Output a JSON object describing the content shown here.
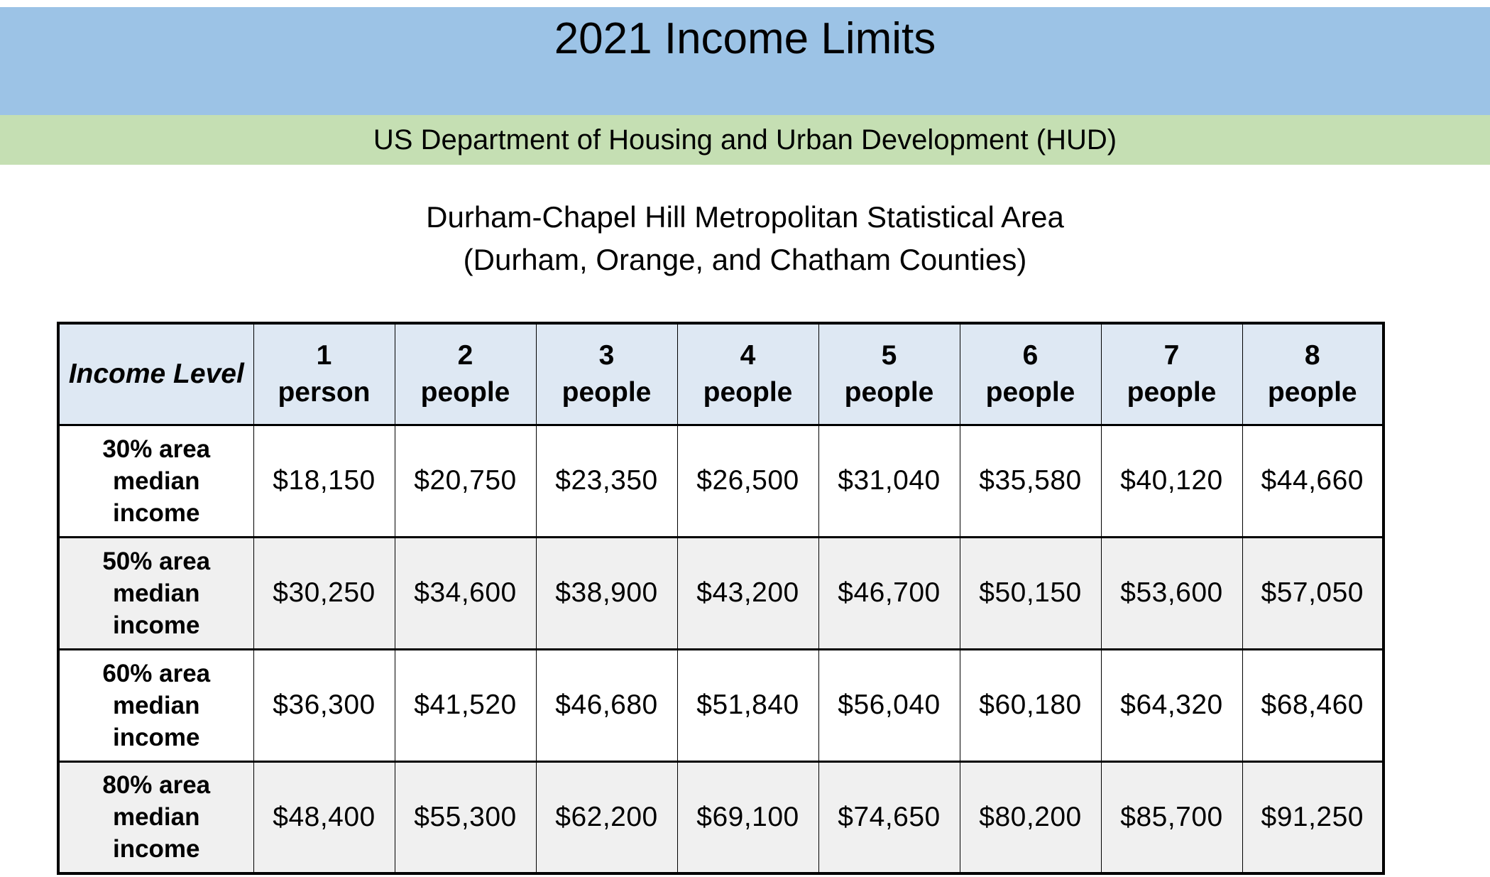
{
  "banner": {
    "title": "2021 Income Limits",
    "org": "US Department of Housing and Urban Development (HUD)"
  },
  "area_title": {
    "line1": "Durham-Chapel Hill Metropolitan Statistical Area",
    "line2": "(Durham, Orange, and Chatham Counties)"
  },
  "colors": {
    "title_band": "#9CC3E6",
    "org_band": "#C5DFB3",
    "table_header_bg": "#DEE8F3",
    "stripe_row_bg": "#F0F0F0",
    "border": "#000000",
    "text": "#000000",
    "page_bg": "#FFFFFF"
  },
  "chart_data": {
    "type": "table",
    "corner_header": "Income Level",
    "columns": [
      {
        "count": "1",
        "unit": "person"
      },
      {
        "count": "2",
        "unit": "people"
      },
      {
        "count": "3",
        "unit": "people"
      },
      {
        "count": "4",
        "unit": "people"
      },
      {
        "count": "5",
        "unit": "people"
      },
      {
        "count": "6",
        "unit": "people"
      },
      {
        "count": "7",
        "unit": "people"
      },
      {
        "count": "8",
        "unit": "people"
      }
    ],
    "rows": [
      {
        "label_lines": [
          "30% area",
          "median",
          "income"
        ],
        "values": [
          "$18,150",
          "$20,750",
          "$23,350",
          "$26,500",
          "$31,040",
          "$35,580",
          "$40,120",
          "$44,660"
        ]
      },
      {
        "label_lines": [
          "50% area",
          "median",
          "income"
        ],
        "values": [
          "$30,250",
          "$34,600",
          "$38,900",
          "$43,200",
          "$46,700",
          "$50,150",
          "$53,600",
          "$57,050"
        ]
      },
      {
        "label_lines": [
          "60% area",
          "median",
          "income"
        ],
        "values": [
          "$36,300",
          "$41,520",
          "$46,680",
          "$51,840",
          "$56,040",
          "$60,180",
          "$64,320",
          "$68,460"
        ]
      },
      {
        "label_lines": [
          "80% area",
          "median",
          "income"
        ],
        "values": [
          "$48,400",
          "$55,300",
          "$62,200",
          "$69,100",
          "$74,650",
          "$80,200",
          "$85,700",
          "$91,250"
        ]
      }
    ]
  }
}
